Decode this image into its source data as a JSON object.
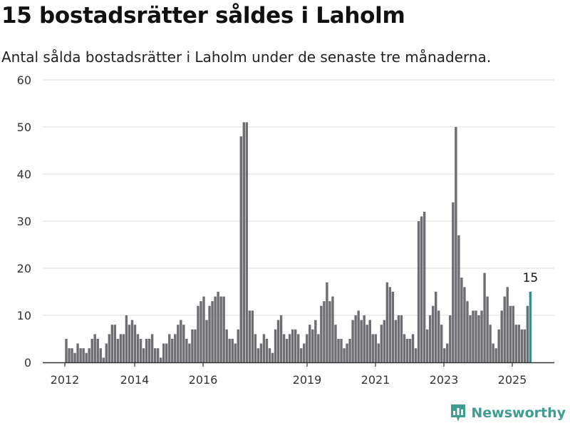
{
  "header": {
    "title": "15 bostadsrätter såldes i Laholm",
    "subtitle": "Antal sålda bostadsrätter i Laholm under de senaste tre månaderna."
  },
  "brand": {
    "name": "Newsworthy"
  },
  "colors": {
    "bar": "#6e6d72",
    "highlight": "#1a9a92",
    "grid": "#dddddd",
    "axis": "#333333"
  },
  "chart_data": {
    "type": "bar",
    "title": "",
    "xlabel": "",
    "ylabel": "",
    "ylim": [
      0,
      60
    ],
    "yticks": [
      0,
      10,
      20,
      30,
      40,
      50,
      60
    ],
    "xticks": [
      "2012",
      "2014",
      "2016",
      "2019",
      "2021",
      "2023",
      "2025"
    ],
    "grid": true,
    "highlight_label": "15",
    "values": [
      5,
      3,
      3,
      2,
      4,
      3,
      3,
      2,
      3,
      5,
      6,
      5,
      3,
      1,
      4,
      6,
      8,
      8,
      5,
      6,
      6,
      10,
      8,
      9,
      8,
      6,
      5,
      3,
      5,
      5,
      6,
      3,
      3,
      1,
      4,
      4,
      6,
      5,
      6,
      8,
      9,
      8,
      5,
      4,
      7,
      7,
      12,
      13,
      14,
      9,
      12,
      13,
      14,
      15,
      14,
      14,
      7,
      5,
      5,
      4,
      7,
      48,
      51,
      51,
      11,
      11,
      6,
      3,
      4,
      6,
      5,
      3,
      2,
      7,
      9,
      10,
      6,
      5,
      6,
      7,
      7,
      6,
      3,
      4,
      6,
      8,
      7,
      9,
      6,
      12,
      13,
      17,
      13,
      14,
      8,
      5,
      5,
      3,
      4,
      5,
      9,
      10,
      11,
      9,
      10,
      8,
      9,
      6,
      6,
      4,
      8,
      9,
      17,
      16,
      15,
      9,
      10,
      10,
      6,
      5,
      5,
      6,
      3,
      30,
      31,
      32,
      7,
      10,
      12,
      15,
      11,
      8,
      3,
      4,
      10,
      34,
      50,
      27,
      18,
      16,
      13,
      10,
      11,
      11,
      10,
      11,
      19,
      14,
      8,
      4,
      3,
      7,
      11,
      14,
      16,
      12,
      12,
      8,
      8,
      7,
      7,
      12,
      15
    ]
  }
}
